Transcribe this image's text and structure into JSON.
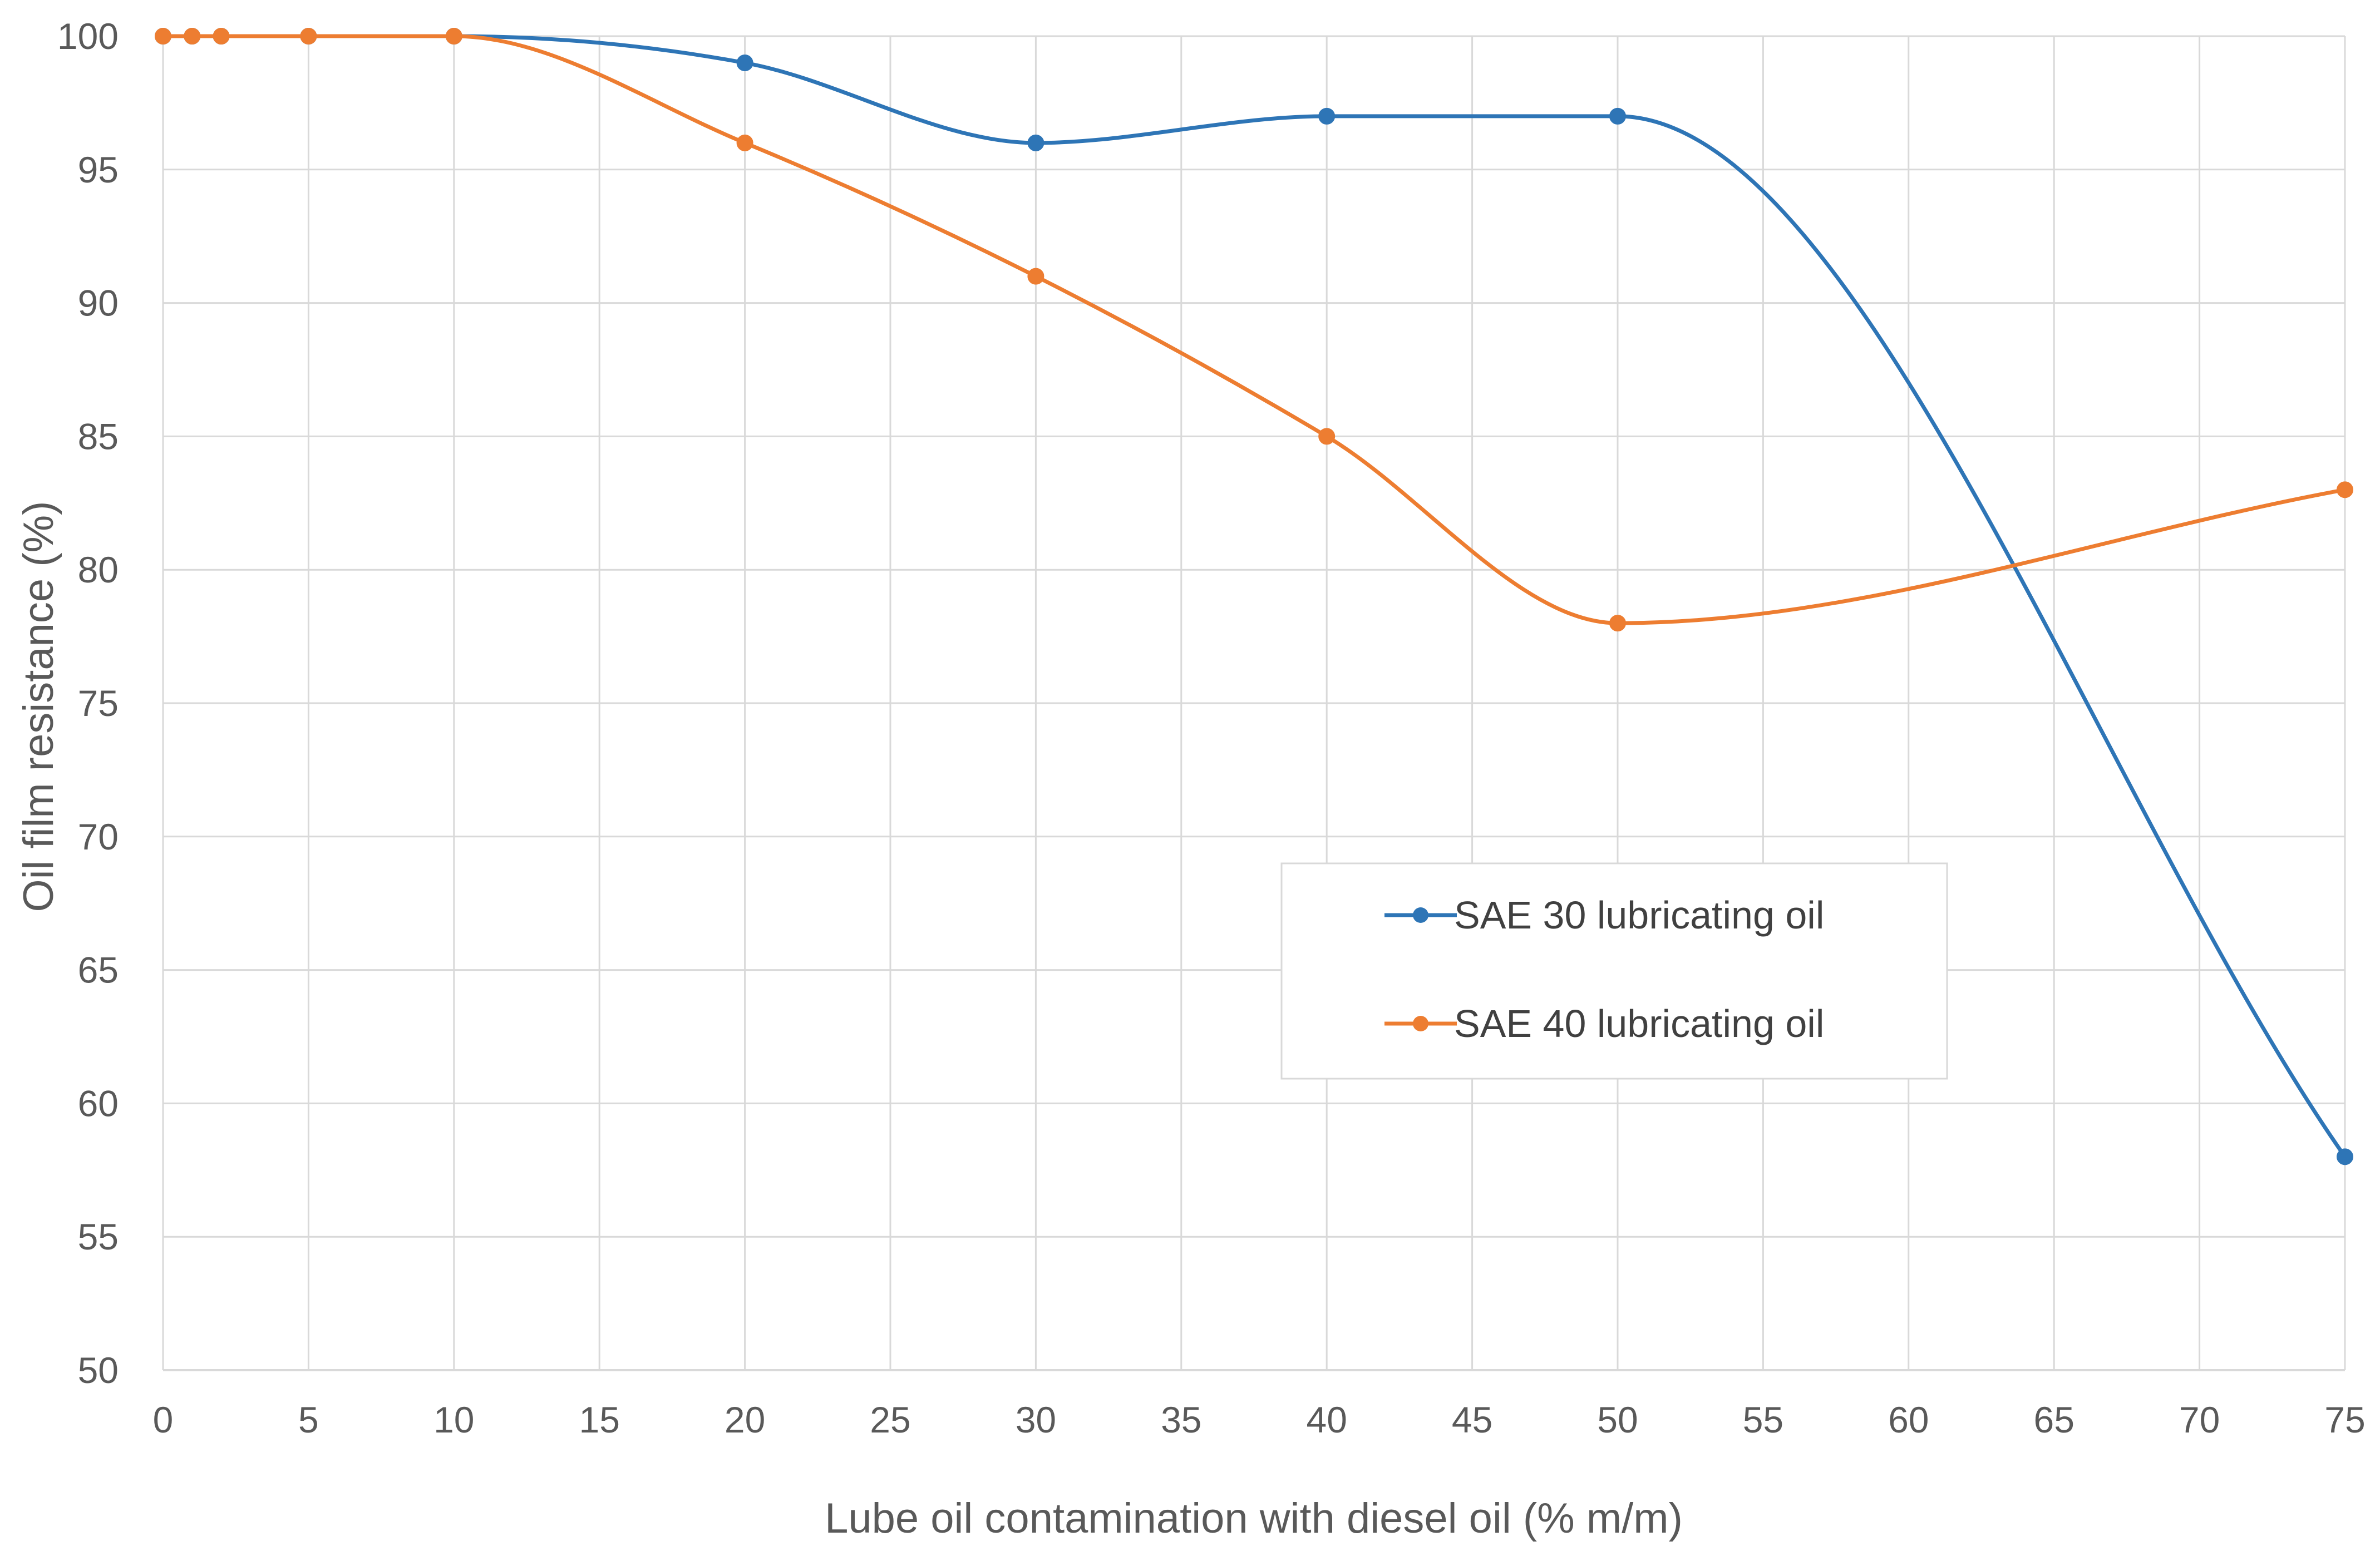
{
  "chart_data": {
    "type": "line",
    "title": "",
    "xlabel": "Lube oil contamination with diesel oil (% m/m)",
    "ylabel": "Oil film resistance (%)",
    "xlim": [
      0,
      75
    ],
    "ylim": [
      50,
      100
    ],
    "xticks": [
      0,
      5,
      10,
      15,
      20,
      25,
      30,
      35,
      40,
      45,
      50,
      55,
      60,
      65,
      70,
      75
    ],
    "yticks": [
      50,
      55,
      60,
      65,
      70,
      75,
      80,
      85,
      90,
      95,
      100
    ],
    "grid": true,
    "legend_position": "center-right",
    "series": [
      {
        "name": "SAE 30 lubricating oil",
        "color": "#2E75B6",
        "smooth": true,
        "x": [
          0,
          1,
          2,
          5,
          10,
          20,
          30,
          40,
          50,
          75
        ],
        "y": [
          100,
          100,
          100,
          100,
          100,
          99,
          96,
          97,
          97,
          58
        ]
      },
      {
        "name": "SAE 40 lubricating oil",
        "color": "#ED7D31",
        "smooth": true,
        "x": [
          0,
          1,
          2,
          5,
          10,
          20,
          30,
          40,
          50,
          75
        ],
        "y": [
          100,
          100,
          100,
          100,
          100,
          96,
          91,
          85,
          78,
          83
        ]
      }
    ]
  }
}
